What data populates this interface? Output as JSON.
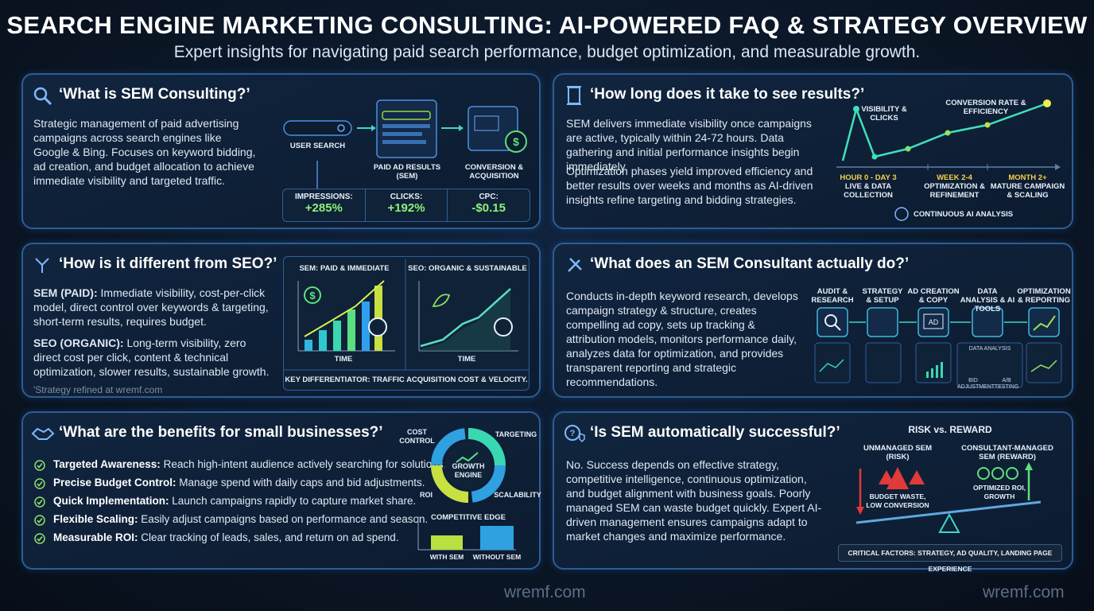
{
  "header": {
    "title": "SEARCH ENGINE MARKETING CONSULTING: AI-POWERED FAQ & STRATEGY OVERVIEW",
    "subtitle": "Expert insights for navigating paid search performance, budget optimization, and measurable growth."
  },
  "panels": [
    {
      "question": "‘What is SEM Consulting?’",
      "body": "Strategic management of paid advertising campaigns across search engines like Google & Bing. Focuses on keyword bidding, ad creation, and budget allocation to achieve immediate visibility and targeted traffic.",
      "flow": [
        "USER SEARCH",
        "PAID AD RESULTS (SEM)",
        "CONVERSION & ACQUISITION"
      ],
      "metrics": [
        {
          "label": "IMPRESSIONS:",
          "value": "+285%"
        },
        {
          "label": "CLICKS:",
          "value": "+192%"
        },
        {
          "label": "CPC:",
          "value": "-$0.15"
        }
      ]
    },
    {
      "question": "‘How long does it take to see results?’",
      "paragraphs": [
        "SEM delivers immediate visibility once campaigns are active, typically within 24-72 hours. Data gathering and initial performance insights begin immediately.",
        "Optimization phases yield improved efficiency and better results over weeks and months as AI-driven insights refine targeting and bidding strategies."
      ],
      "chart_labels": [
        "VISIBILITY & CLICKS",
        "CONVERSION RATE & EFFICIENCY"
      ],
      "phases": [
        {
          "time": "HOUR 0 - DAY 3",
          "label": "LIVE & DATA COLLECTION"
        },
        {
          "time": "WEEK 2-4",
          "label": "OPTIMIZATION & REFINEMENT"
        },
        {
          "time": "MONTH 2+",
          "label": "MATURE CAMPAIGN & SCALING"
        }
      ],
      "footer": "CONTINUOUS AI ANALYSIS"
    },
    {
      "question": "‘How is it different from SEO?’",
      "items": [
        {
          "label": "SEM (PAID):",
          "text": "Immediate visibility, cost-per-click model, direct control over keywords & targeting, short-term results, requires budget."
        },
        {
          "label": "SEO (ORGANIC):",
          "text": "Long-term visibility, zero direct cost per click, content & technical optimization, slower results, sustainable growth."
        }
      ],
      "note": "'Strategy refined at wremf.com",
      "charts": [
        {
          "title": "SEM: PAID & IMMEDIATE",
          "axis": "TIME"
        },
        {
          "title": "SEO: ORGANIC & SUSTAINABLE",
          "axis": "TIME"
        }
      ],
      "footer": "KEY DIFFERENTIATOR: TRAFFIC ACQUISITION COST & VELOCITY."
    },
    {
      "question": "‘What does an SEM Consultant actually do?’",
      "body": "Conducts in-depth keyword research, develops campaign strategy & structure, creates compelling ad copy, sets up tracking & attribution models, monitors performance daily, analyzes data for optimization, and provides transparent reporting and strategic recommendations.",
      "steps": [
        "AUDIT & RESEARCH",
        "STRATEGY & SETUP",
        "AD CREATION & COPY",
        "DATA ANALYSIS & AI TOOLS",
        "OPTIMIZATION & REPORTING"
      ],
      "details": [
        "DATA ANALYSIS",
        "BID ADJUSTMENT",
        "A/B TESTING"
      ]
    },
    {
      "question": "‘What are the benefits for small businesses?’",
      "items": [
        {
          "label": "Targeted Awareness:",
          "text": "Reach high-intent audience actively searching for solutions."
        },
        {
          "label": "Precise Budget Control:",
          "text": "Manage spend with daily caps and bid adjustments."
        },
        {
          "label": "Quick Implementation:",
          "text": "Launch campaigns rapidly to capture market share."
        },
        {
          "label": "Flexible Scaling:",
          "text": "Easily adjust campaigns based on performance and season."
        },
        {
          "label": "Measurable ROI:",
          "text": "Clear tracking of leads, sales, and return on ad spend."
        }
      ],
      "donut_center": "GROWTH ENGINE",
      "donut_labels": [
        "COST CONTROL",
        "TARGETING",
        "ROI",
        "SCALABILITY"
      ],
      "bar_title": "COMPETITIVE EDGE",
      "bar_labels": [
        "WITH SEM",
        "WITHOUT SEM"
      ]
    },
    {
      "question": "‘Is SEM automatically successful?’",
      "body": "No. Success depends on effective strategy, competitive intelligence, continuous optimization, and budget alignment with business goals. Poorly managed SEM can waste budget quickly. Expert AI-driven management ensures campaigns adapt to market changes and maximize performance.",
      "diagram_title": "RISK vs. REWARD",
      "sides": [
        {
          "label": "UNMANAGED SEM (RISK)",
          "outcome": "BUDGET WASTE, LOW CONVERSION"
        },
        {
          "label": "CONSULTANT-MANAGED SEM (REWARD)",
          "outcome": "OPTIMIZED ROI, GROWTH"
        }
      ],
      "footer": "CRITICAL FACTORS: STRATEGY, AD QUALITY, LANDING PAGE EXPERIENCE"
    }
  ],
  "footer": {
    "watermarks": [
      "wremf.com",
      "wremf.com"
    ]
  }
}
